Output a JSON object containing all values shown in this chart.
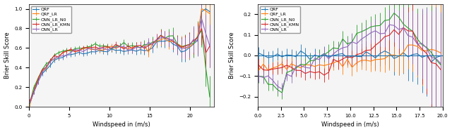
{
  "colors": {
    "QRF": "#1f77b4",
    "QRF_LR": "#ff7f0e",
    "CNN_LR_N0": "#2ca02c",
    "CNN_LR_KMN": "#d62728",
    "CNN_LR": "#9467bd"
  },
  "labels": [
    "QRF",
    "QRF_LR",
    "CNN_LR_N0",
    "CNN_LR_KMN",
    "CNN_LR"
  ],
  "ylabel_left": "Brier Skill Score",
  "ylabel_right": "Brier Skill Score",
  "xlabel": "Windspeed in (m/s)",
  "background": "#f0f0f0"
}
